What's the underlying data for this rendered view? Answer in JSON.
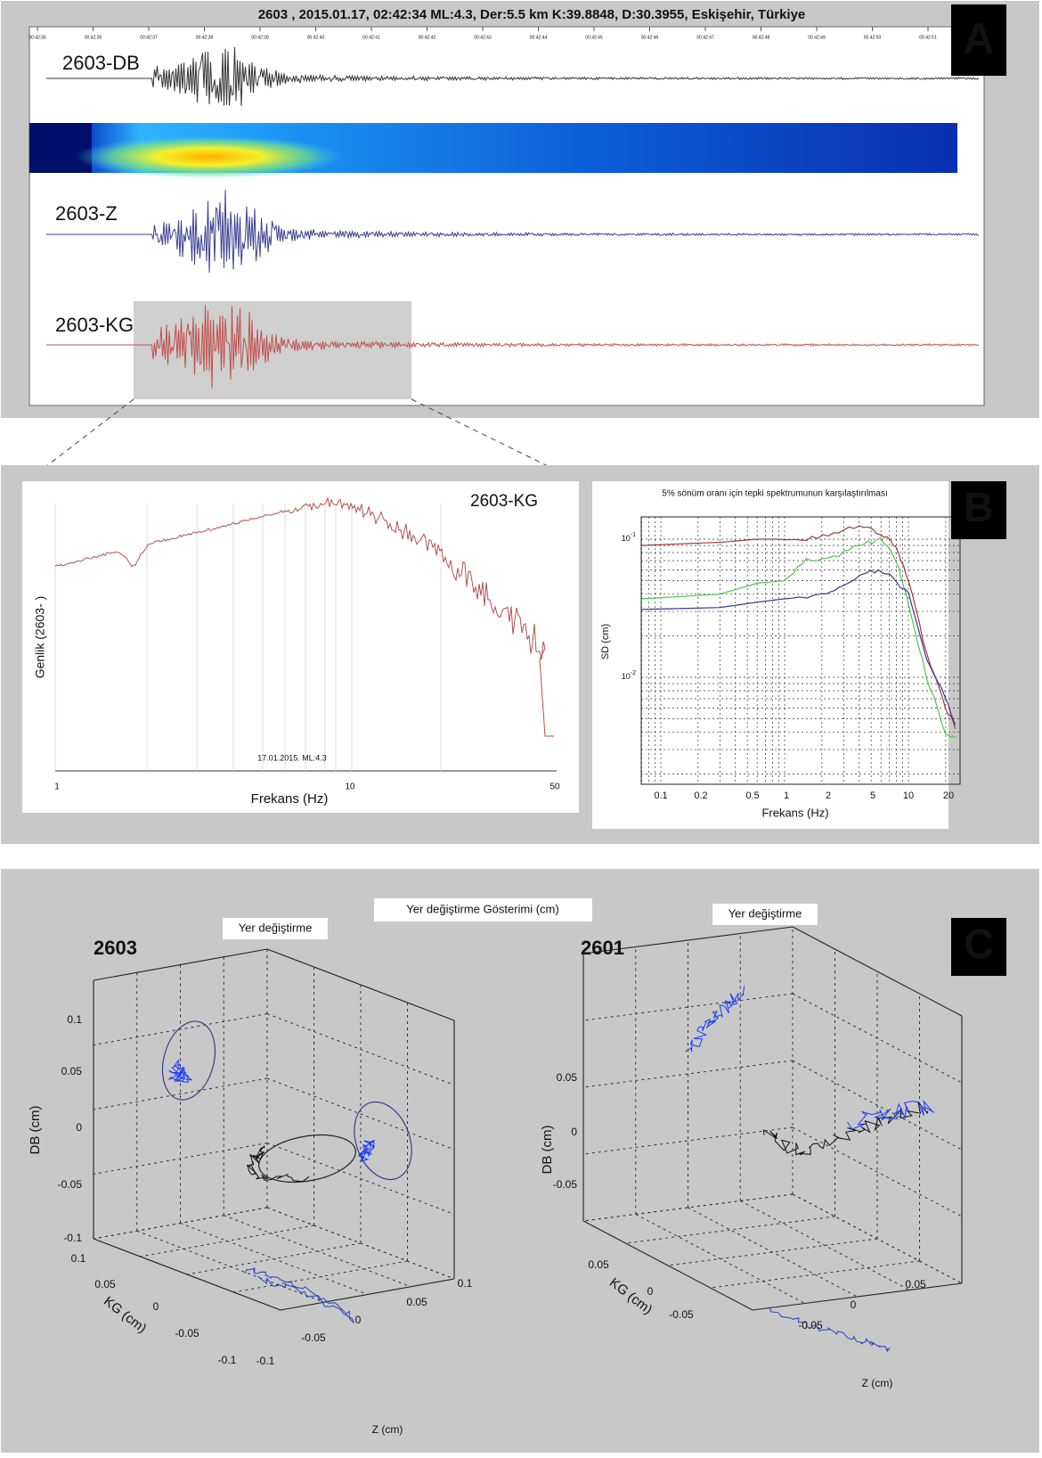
{
  "panel_a": {
    "label": "A",
    "title": "2603 , 2015.01.17, 02:42:34 ML:4.3,     Der:5.5 km  K:39.8848,  D:30.3955, Eskişehir, Türkiye",
    "time_ticks": [
      "00:42:35",
      "00:42:36",
      "00:42:37",
      "00:42:38",
      "00:42:39",
      "00:42:40",
      "00:42:41",
      "00:42:42",
      "00:42:43",
      "00:42:44",
      "00:42:45",
      "00:42:46",
      "00:42:47",
      "00:42:48",
      "00:42:49",
      "00:42:50",
      "00:42:51"
    ],
    "traces": [
      "2603-DB",
      "2603-Z",
      "2603-KG"
    ]
  },
  "panel_b": {
    "label": "B",
    "spectrum": {
      "trace": "2603-KG",
      "y_label": "Genlik (2603-  )",
      "x_label": "Frekans (Hz)",
      "note": "17.01.2015. ML:4.3",
      "x_ticks": [
        "1",
        "10",
        "50"
      ]
    },
    "response": {
      "title": "5% sönüm oranı için tepki spektrumunun karşılaştırılması",
      "y_label": "SD (cm)",
      "x_label": "Frekans (Hz)",
      "y_ticks": [
        {
          "base": "10",
          "exp": "-1"
        },
        {
          "base": "10",
          "exp": "-2"
        }
      ],
      "x_ticks": [
        "0.1",
        "0.2",
        "0.5",
        "1",
        "2",
        "5",
        "10",
        "20"
      ]
    }
  },
  "panel_c": {
    "label": "C",
    "title": "Yer değiştirme Gösterimi (cm)",
    "plots": [
      {
        "station": "2603",
        "heading": "Yer değiştirme",
        "db_label": "DB (cm)",
        "kg_label": "KG (cm)",
        "z_label": "Z (cm)",
        "db_ticks": [
          "0.1",
          "0.05",
          "0",
          "-0.05",
          "-0.1"
        ],
        "kg_ticks": [
          "0.1",
          "0.05",
          "0",
          "-0.05",
          "-0.1"
        ],
        "z_ticks": [
          "-0.1",
          "-0.05",
          "0",
          "0.05",
          "0.1"
        ]
      },
      {
        "station": "2601",
        "heading": "Yer değiştirme",
        "db_label": "DB (cm)",
        "kg_label": "KG (cm)",
        "z_label": "Z (cm)",
        "db_ticks": [
          "0.05",
          "0",
          "-0.05"
        ],
        "kg_ticks": [
          "0.05",
          "0",
          "-0.05"
        ],
        "z_ticks": [
          "-0.05",
          "0",
          "0.05"
        ]
      }
    ]
  }
}
